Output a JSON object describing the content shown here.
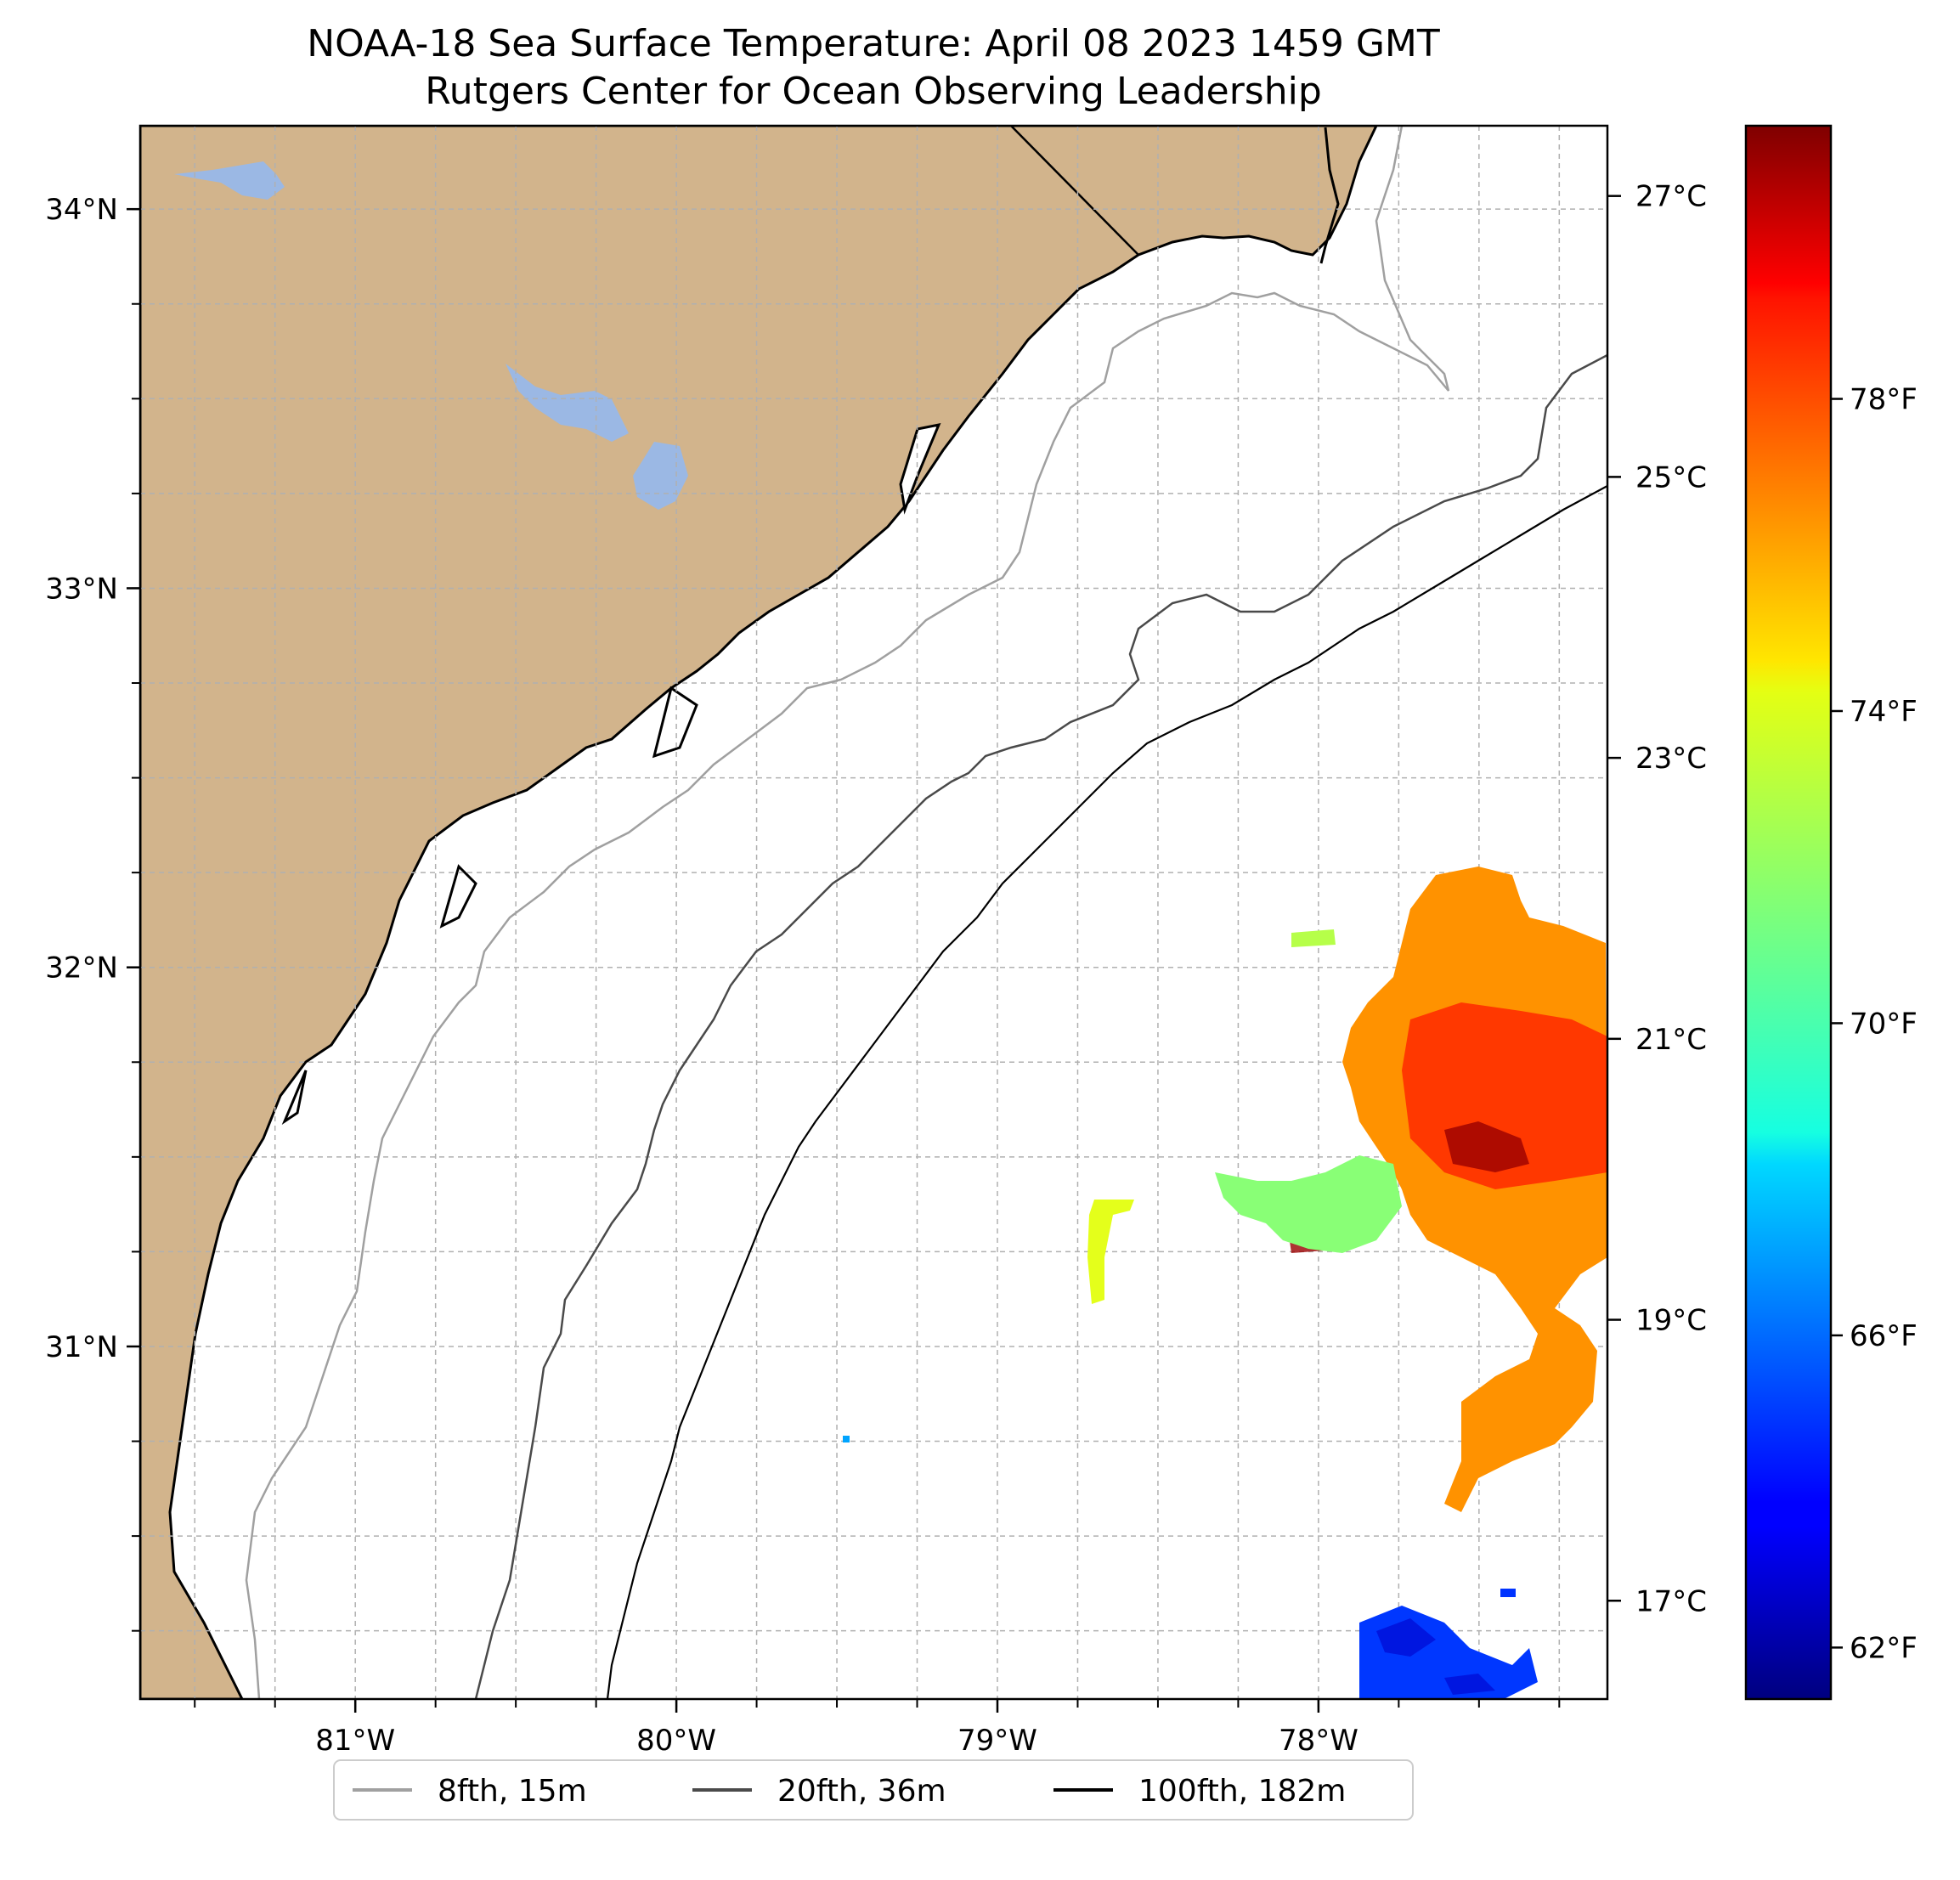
{
  "title": {
    "line1": "NOAA-18 Sea Surface Temperature: April 08 2023 1459 GMT",
    "line2": "Rutgers Center for Ocean Observing Leadership"
  },
  "map": {
    "lon_range": [
      -81.67,
      -77.1
    ],
    "lat_range": [
      30.07,
      34.22
    ],
    "land_color": "#d2b48c",
    "water_body_color": "#9bb8e4",
    "ocean_color": "#ffffff",
    "grid": true,
    "lat_ticks": [
      {
        "value": 34,
        "label": "34°N"
      },
      {
        "value": 33,
        "label": "33°N"
      },
      {
        "value": 32,
        "label": "32°N"
      },
      {
        "value": 31,
        "label": "31°N"
      }
    ],
    "lon_ticks": [
      {
        "value": -81,
        "label": "81°W"
      },
      {
        "value": -80,
        "label": "80°W"
      },
      {
        "value": -79,
        "label": "79°W"
      },
      {
        "value": -78,
        "label": "78°W"
      }
    ]
  },
  "colorbar": {
    "colormap": "jet",
    "celsius_range": [
      16.3,
      27.5
    ],
    "celsius_ticks": [
      {
        "value": 27,
        "label": "27°C"
      },
      {
        "value": 25,
        "label": "25°C"
      },
      {
        "value": 23,
        "label": "23°C"
      },
      {
        "value": 21,
        "label": "21°C"
      },
      {
        "value": 19,
        "label": "19°C"
      },
      {
        "value": 17,
        "label": "17°C"
      }
    ],
    "fahrenheit_ticks": [
      {
        "value": 78,
        "label": "78°F"
      },
      {
        "value": 74,
        "label": "74°F"
      },
      {
        "value": 70,
        "label": "70°F"
      },
      {
        "value": 66,
        "label": "66°F"
      },
      {
        "value": 62,
        "label": "62°F"
      }
    ]
  },
  "legend": {
    "placement": "bottom-center",
    "items": [
      {
        "label": "8fth, 15m",
        "color": "#a0a0a0"
      },
      {
        "label": "20fth, 36m",
        "color": "#4a4a4a"
      },
      {
        "label": "100fth, 182m",
        "color": "#000000"
      }
    ]
  },
  "sst_patches": [
    {
      "name": "main-warm-patch",
      "temp_c": 24.5
    },
    {
      "name": "west-fringe",
      "temp_c": 22.0
    },
    {
      "name": "south-tongue",
      "temp_c": 22.5
    },
    {
      "name": "cold-southern-patch",
      "temp_c": 18.3
    },
    {
      "name": "small-western-patch",
      "temp_c": 23.0
    }
  ]
}
